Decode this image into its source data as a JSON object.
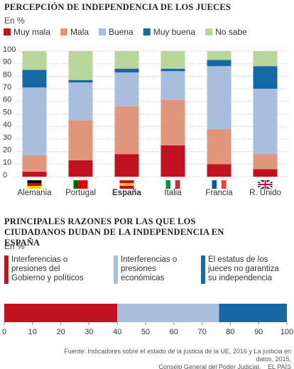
{
  "chart_data": [
    {
      "type": "bar",
      "stacked": true,
      "title": "PERCEPCIÓN DE INDEPENDENCIA DE LOS JUECES",
      "subtitle": "En %",
      "categories": [
        "Alemania",
        "Portugal",
        "España",
        "Italia",
        "Francia",
        "R. Unido"
      ],
      "highlight": "España",
      "series": [
        {
          "name": "Muy mala",
          "color": "#c0121f",
          "values": [
            4,
            13,
            18,
            25,
            10,
            6
          ]
        },
        {
          "name": "Mala",
          "color": "#e0967a",
          "values": [
            13,
            32,
            38,
            36,
            28,
            12
          ]
        },
        {
          "name": "Buena",
          "color": "#a7bfdc",
          "values": [
            54,
            30,
            27,
            23,
            50,
            52
          ]
        },
        {
          "name": "Muy buena",
          "color": "#1668a6",
          "values": [
            14,
            2,
            3,
            2,
            5,
            18
          ]
        },
        {
          "name": "No sabe",
          "color": "#b8d59a",
          "values": [
            15,
            23,
            14,
            14,
            7,
            12
          ]
        }
      ],
      "ylim": [
        0,
        100
      ],
      "yticks": [
        0,
        10,
        20,
        30,
        40,
        50,
        60,
        70,
        80,
        90,
        100
      ],
      "grid": true
    },
    {
      "type": "bar",
      "orientation": "horizontal",
      "stacked": true,
      "title": "PRINCIPALES RAZONES POR LAS QUE LOS CIUDADANOS DUDAN DE LA INDEPENDENCIA EN ESPAÑA",
      "subtitle": "En %",
      "series": [
        {
          "name": "Interferencias o presiones del Gobierno y políticos",
          "color": "#c0121f",
          "values": [
            40
          ]
        },
        {
          "name": "Interferencias o presiones económicas",
          "color": "#a7bfdc",
          "values": [
            36
          ]
        },
        {
          "name": "El estatus de los jueces no garantiza su independencia",
          "color": "#1668a6",
          "values": [
            24
          ]
        }
      ],
      "xlim": [
        0,
        100
      ],
      "xticks": [
        0,
        10,
        20,
        30,
        40,
        50,
        60,
        70,
        80,
        90,
        100
      ],
      "source": [
        "Fuente: Indicadores sobre el estado de la justicia de la UE, 2016 y La justicia en datos, 2015,",
        "Consejo General del Poder Judicial."
      ],
      "credit": "EL PAÍS"
    }
  ]
}
